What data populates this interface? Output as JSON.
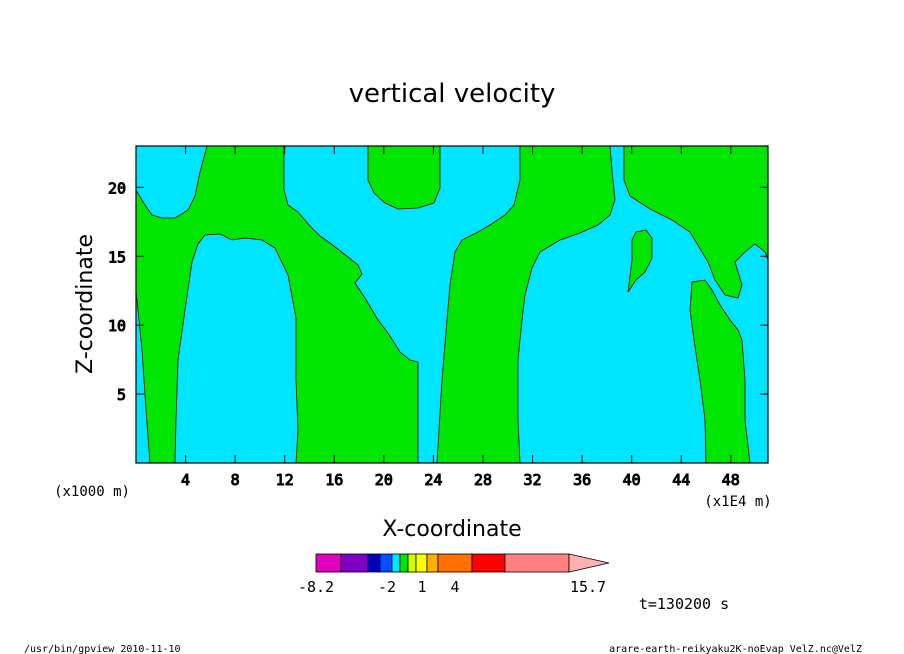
{
  "chart_data": {
    "type": "heatmap",
    "title": "vertical velocity",
    "xlabel": "X-coordinate",
    "ylabel": "Z-coordinate",
    "x_unit_note": "(x1E4 m)",
    "y_unit_note": "(x1000 m)",
    "xlim": [
      0,
      51
    ],
    "ylim": [
      0,
      23
    ],
    "x_ticks": [
      4,
      8,
      12,
      16,
      20,
      24,
      28,
      32,
      36,
      40,
      44,
      48
    ],
    "y_ticks": [
      5,
      10,
      15,
      20
    ],
    "x_tick_labels": [
      "4",
      "8",
      "12",
      "16",
      "20",
      "24",
      "28",
      "32",
      "36",
      "40",
      "44",
      "48"
    ],
    "y_tick_labels": [
      "5",
      "10",
      "15",
      "20"
    ],
    "regions": [
      {
        "name": "background",
        "value_range": "0 to 1",
        "color": "#00e5ff"
      },
      {
        "name": "updraft",
        "value_range": "1 to 2",
        "color": "#00e600"
      }
    ],
    "colorbar": {
      "colors": [
        "#e000c0",
        "#8000c8",
        "#0000c0",
        "#0050ff",
        "#00e5ff",
        "#00e600",
        "#d0ff00",
        "#ffff00",
        "#ffb000",
        "#ff7000",
        "#ff0000",
        "#ff8080",
        "#ffb0b0"
      ],
      "tick_labels": [
        "-8.2",
        "-2",
        "1",
        "4",
        "15.7"
      ]
    },
    "time_label": "t=130200 s",
    "footer_left": "/usr/bin/gpview  2010-11-10",
    "footer_right": "arare-earth-reikyaku2K-noEvap_VelZ.nc@VelZ"
  },
  "colors": {
    "cyan": "#00e5ff",
    "green": "#00e600"
  }
}
